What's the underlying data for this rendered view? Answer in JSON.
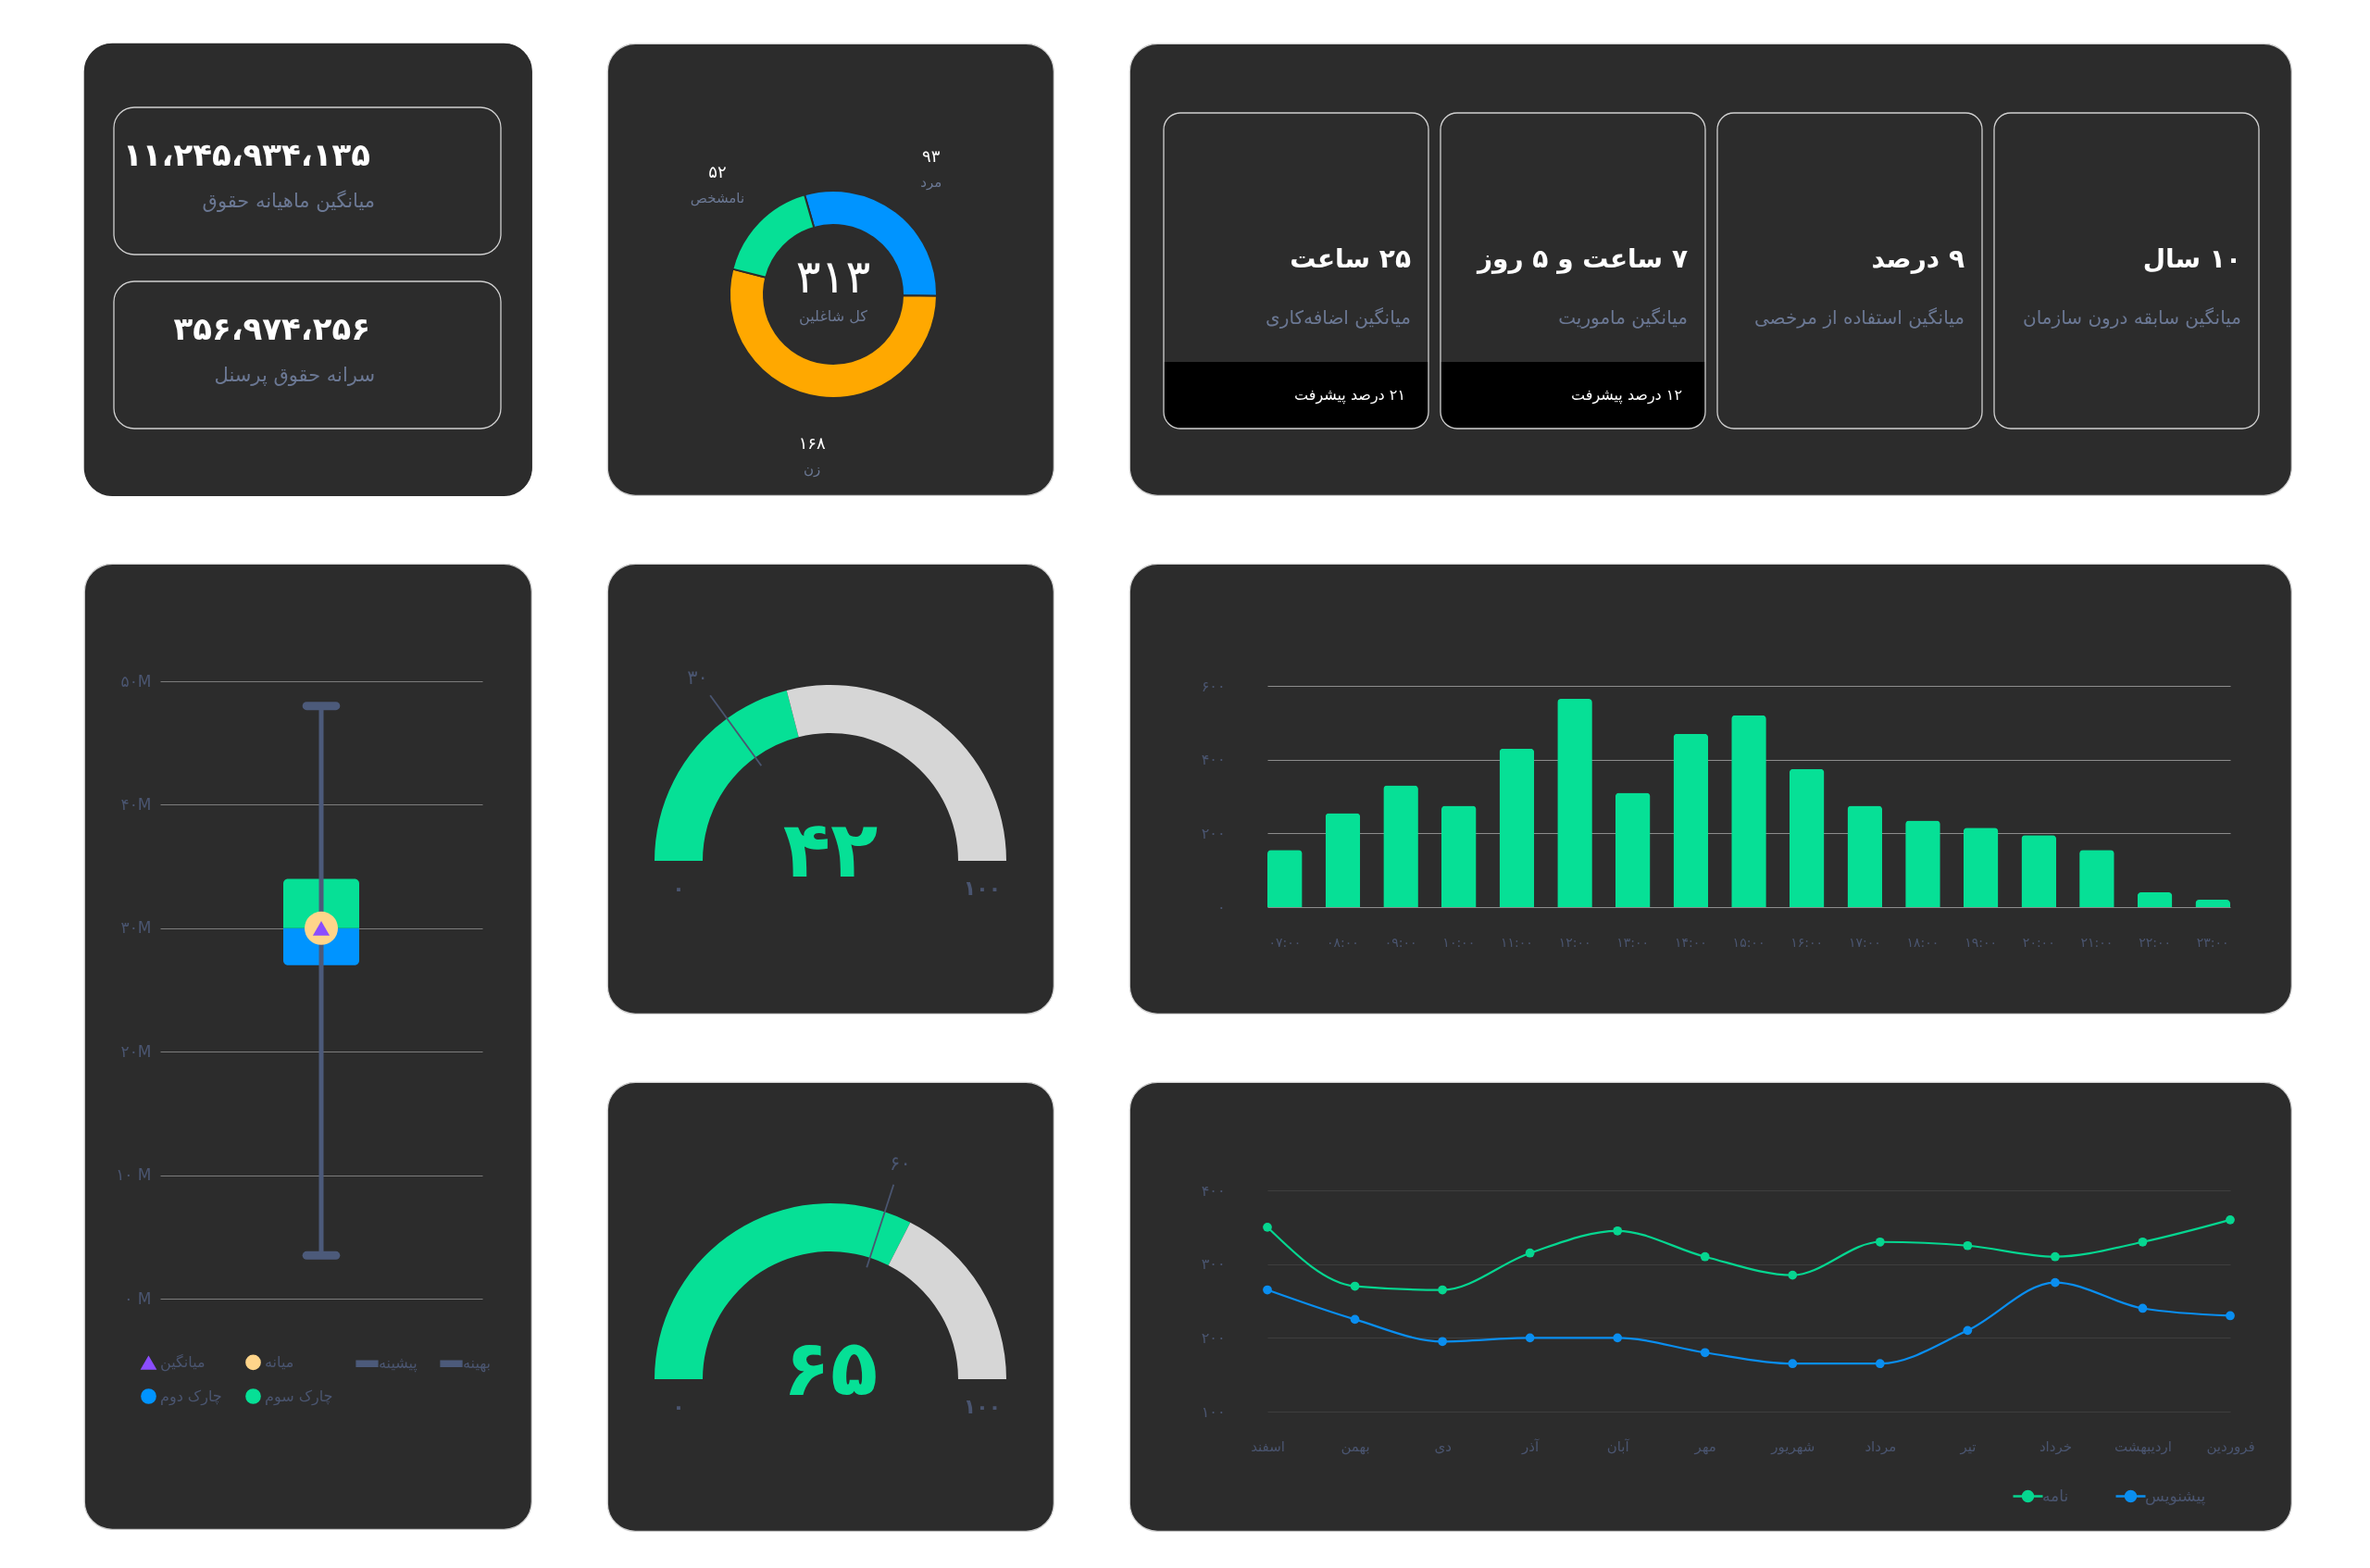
{
  "chart_data": [
    {
      "type": "other",
      "annotations": [
        "۱۱،۲۴۵،۹۳۴،۱۳۵",
        "میانگین ماهیانه حقوق"
      ]
    },
    {
      "type": "other",
      "annotations": [
        "۳۵۶،۹۷۴،۲۵۶",
        "سرانه حقوق پرسنل"
      ]
    },
    {
      "type": "donut",
      "categories": [
        "مرد",
        "زن",
        "نامشخص"
      ],
      "values": [
        93,
        168,
        52
      ],
      "colors": [
        "#0094ff",
        "#ffa800",
        "#06e096"
      ],
      "value_labels": [
        "۹۳",
        "۱۶۸",
        "۵۲"
      ],
      "annotations": [
        "۳۱۳",
        "کل شاغلین"
      ]
    },
    {
      "type": "other",
      "annotations": [
        "۲۵ ساعت",
        "میانگین اضافه‌کاری",
        "۲۱ درصد پیشرفت"
      ]
    },
    {
      "type": "other",
      "annotations": [
        "۷ ساعت و ۵ روز",
        "میانگین ماموریت",
        "۱۲ درصد پیشرفت"
      ]
    },
    {
      "type": "other",
      "annotations": [
        "۹ درصد",
        "میانگین استفاده از مرخصی"
      ]
    },
    {
      "type": "other",
      "annotations": [
        "۱۰ سال",
        "میانگین سابقه درون سازمان"
      ]
    },
    {
      "type": "box",
      "categories": [
        null
      ],
      "boxes": [
        {
          "low": 3.5,
          "q1": 27,
          "median": 30,
          "q3": 34,
          "high": 48,
          "mean": 30
        }
      ],
      "series": [
        {
          "name": "میانگین",
          "color": "#8b4dff",
          "values": [
            null
          ]
        },
        {
          "name": "میانه",
          "color": "#ffd58a",
          "values": [
            null
          ]
        },
        {
          "name": "پیشینه",
          "color": "#4c5a7a",
          "values": [
            null
          ]
        },
        {
          "name": "بهینه",
          "color": "#4c5a7a",
          "values": [
            null
          ]
        },
        {
          "name": "چارک دوم",
          "color": "#0094ff",
          "values": [
            null
          ]
        },
        {
          "name": "چارک سوم",
          "color": "#06e096",
          "values": [
            null
          ]
        }
      ],
      "ylim": [
        0,
        50
      ],
      "yticks": [
        {
          "value": 0,
          "label": "۰ M"
        },
        {
          "value": 10,
          "label": "۱۰ M"
        },
        {
          "value": 20,
          "label": "۲۰M"
        },
        {
          "value": 30,
          "label": "۳۰M"
        },
        {
          "value": 40,
          "label": "۴۰M"
        },
        {
          "value": 50,
          "label": "۵۰M"
        }
      ],
      "grid": "y",
      "legend": "bottom"
    },
    {
      "type": "donut",
      "categories": [
        null,
        null,
        null
      ],
      "values": [
        30,
        12,
        58
      ],
      "colors": [
        "#06e096",
        "#06e096",
        "#d6d6d6"
      ],
      "annotations": [
        "۴۲",
        "۰",
        "۱۰۰",
        "۳۰"
      ]
    },
    {
      "type": "bar",
      "categories": [
        "۰۷:۰۰",
        "۰۸:۰۰",
        "۰۹:۰۰",
        "۱۰:۰۰",
        "۱۱:۰۰",
        "۱۲:۰۰",
        "۱۳:۰۰",
        "۱۴:۰۰",
        "۱۵:۰۰",
        "۱۶:۰۰",
        "۱۷:۰۰",
        "۱۸:۰۰",
        "۱۹:۰۰",
        "۲۰:۰۰",
        "۲۱:۰۰",
        "۲۲:۰۰",
        "۲۳:۰۰"
      ],
      "values": [
        155,
        255,
        330,
        275,
        430,
        565,
        310,
        470,
        520,
        375,
        275,
        235,
        215,
        195,
        155,
        40,
        20
      ],
      "color": "#06e096",
      "ylim": [
        0,
        600
      ],
      "yticks": [
        {
          "value": 0,
          "label": "۰"
        },
        {
          "value": 200,
          "label": "۲۰۰"
        },
        {
          "value": 400,
          "label": "۴۰۰"
        },
        {
          "value": 600,
          "label": "۶۰۰"
        }
      ],
      "grid": "y"
    },
    {
      "type": "donut",
      "categories": [
        null,
        null,
        null
      ],
      "values": [
        60,
        5,
        35
      ],
      "colors": [
        "#06e096",
        "#06e096",
        "#d6d6d6"
      ],
      "annotations": [
        "۶۵",
        "۰",
        "۱۰۰",
        "۶۰"
      ]
    },
    {
      "type": "line",
      "categories": [
        "اسفند",
        "بهمن",
        "دی",
        "آذر",
        "آبان",
        "مهر",
        "شهریور",
        "مرداد",
        "تیر",
        "خرداد",
        "اردیبهشت",
        "فروردین"
      ],
      "series": [
        {
          "name": "نامه",
          "color": "#06d690",
          "values": [
            350,
            270,
            265,
            315,
            345,
            310,
            285,
            330,
            325,
            310,
            330,
            360
          ]
        },
        {
          "name": "پیشنویس",
          "color": "#0a8ef0",
          "values": [
            265,
            225,
            195,
            200,
            200,
            180,
            165,
            165,
            210,
            275,
            240,
            230
          ]
        }
      ],
      "ylim": [
        100,
        400
      ],
      "yticks": [
        {
          "value": 100,
          "label": "۱۰۰"
        },
        {
          "value": 200,
          "label": "۲۰۰"
        },
        {
          "value": 300,
          "label": "۳۰۰"
        },
        {
          "value": 400,
          "label": "۴۰۰"
        }
      ],
      "grid": "y",
      "legend": "bottom right",
      "marker": "circle",
      "line_style": "solid"
    }
  ]
}
